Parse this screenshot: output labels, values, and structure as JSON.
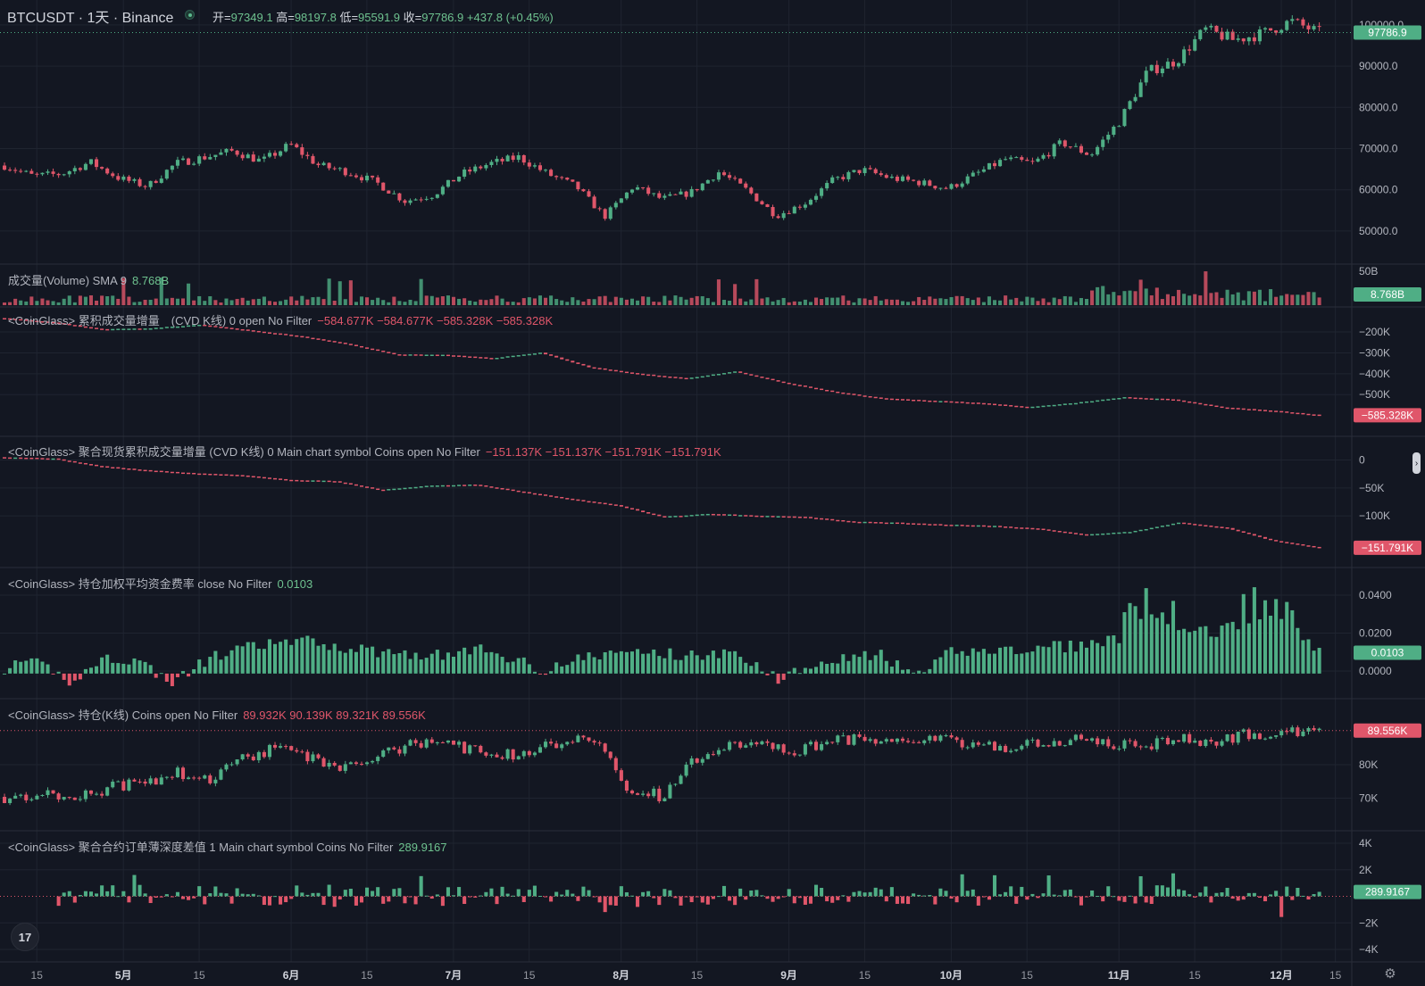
{
  "header": {
    "title": "BTCUSDT · 1天 · Binance",
    "ohlc": [
      {
        "k": "开=",
        "v": "97349.1"
      },
      {
        "k": "高=",
        "v": "98197.8"
      },
      {
        "k": "低=",
        "v": "95591.9"
      },
      {
        "k": "收=",
        "v": "97786.9"
      }
    ],
    "change": "+437.8 (+0.45%)"
  },
  "panes": {
    "volume": {
      "label": "成交量(Volume) SMA 9",
      "value": "8.768B"
    },
    "cvd": {
      "label": "<CoinGlass> 累积成交量增量　(CVD K线) 0 open No Filter",
      "values": "−584.677K  −584.677K  −585.328K  −585.328K"
    },
    "spot_cvd": {
      "label": "<CoinGlass> 聚合现货累积成交量增量 (CVD K线) 0 Main chart symbol Coins open No Filter",
      "values": "−151.137K  −151.137K  −151.791K  −151.791K"
    },
    "funding": {
      "label": "<CoinGlass> 持仓加权平均资金费率 close No Filter",
      "value": "0.0103"
    },
    "oi": {
      "label": "<CoinGlass> 持仓(K线) Coins open No Filter",
      "values": "89.932K  90.139K  89.321K  89.556K"
    },
    "depth": {
      "label": "<CoinGlass> 聚合合约订单薄深度差值 1 Main chart symbol Coins No Filter",
      "value": "289.9167"
    }
  },
  "logo": {
    "text": "17"
  },
  "icons": {
    "collapse": "chevron-right-icon",
    "settings": "gear-icon",
    "logo": "tradingview-logo-icon"
  },
  "colors": {
    "up": "#4fae85",
    "down": "#e0566a",
    "bg": "#131722",
    "grid": "#1f2430",
    "text": "#d1d4dc"
  },
  "chart_data": [
    {
      "type": "candlestick",
      "title": "BTCUSDT · 1天 · Binance",
      "x_ticks": [
        "15",
        "5月",
        "15",
        "6月",
        "15",
        "7月",
        "15",
        "8月",
        "15",
        "9月",
        "15",
        "10月",
        "15",
        "11月",
        "15",
        "12月",
        "15"
      ],
      "y_ticks": [
        "100000.0",
        "90000.0",
        "80000.0",
        "70000.0",
        "60000.0",
        "50000.0"
      ],
      "ylim": [
        45000,
        103000
      ],
      "last_price": "97786.9",
      "x_dates": [
        "2024-04-15",
        "2024-05-01",
        "2024-05-15",
        "2024-06-01",
        "2024-06-15",
        "2024-07-01",
        "2024-07-15",
        "2024-08-01",
        "2024-08-15",
        "2024-09-01",
        "2024-09-15",
        "2024-10-01",
        "2024-10-15",
        "2024-11-01",
        "2024-11-15",
        "2024-12-01",
        "2024-12-11"
      ],
      "close_path": [
        66000,
        63500,
        64000,
        66800,
        63000,
        61000,
        66500,
        68000,
        69500,
        67000,
        71000,
        66000,
        64500,
        62000,
        57500,
        59000,
        64000,
        66500,
        68000,
        64000,
        61000,
        53800,
        61000,
        58000,
        59500,
        64500,
        60000,
        54000,
        57000,
        62500,
        65000,
        63000,
        62000,
        60500,
        64000,
        67500,
        66500,
        71500,
        68500,
        76500,
        88500,
        91000,
        98500,
        96000,
        97500,
        100500,
        97786.9
      ],
      "grid": true
    },
    {
      "type": "bar",
      "title": "成交量(Volume) SMA 9",
      "y_ticks": [
        "50B"
      ],
      "last_value": "8.768B",
      "max_values": [
        "50B"
      ]
    },
    {
      "type": "candlestick",
      "title": "<CoinGlass> 累积成交量增量　(CVD K线) 0 open No Filter",
      "y_ticks": [
        "−200K",
        "−300K",
        "−400K",
        "−500K"
      ],
      "ylim": [
        -640000,
        -140000
      ],
      "last_value": "−585.328K",
      "path": [
        -150000,
        -170000,
        -200000,
        -195000,
        -180000,
        -205000,
        -230000,
        -265000,
        -312000,
        -315000,
        -330000,
        -305000,
        -370000,
        -400000,
        -420000,
        -390000,
        -440000,
        -480000,
        -510000,
        -520000,
        -530000,
        -550000,
        -530000,
        -505000,
        -515000,
        -550000,
        -565000,
        -585328
      ]
    },
    {
      "type": "candlestick",
      "title": "<CoinGlass> 聚合现货累积成交量增量 (CVD K线) 0 Main chart symbol Coins open No Filter",
      "y_ticks": [
        "0",
        "−50K",
        "−100K"
      ],
      "ylim": [
        -170000,
        20000
      ],
      "last_value": "−151.791K",
      "path": [
        0,
        -2000,
        -15000,
        -22000,
        -27000,
        -30000,
        -38000,
        -40000,
        -55000,
        -48000,
        -46000,
        -58000,
        -70000,
        -80000,
        -100000,
        -95000,
        -98000,
        -100000,
        -108000,
        -110000,
        -113000,
        -115000,
        -120000,
        -130000,
        -125000,
        -110000,
        -118000,
        -140000,
        -151791
      ]
    },
    {
      "type": "bar",
      "title": "<CoinGlass> 持仓加权平均资金费率 close No Filter",
      "y_ticks": [
        "0.0400",
        "0.0200",
        "0.0000"
      ],
      "ylim": [
        -0.008,
        0.048
      ],
      "last_value": "0.0103",
      "profile": [
        0.003,
        0.005,
        -0.004,
        0.008,
        0.006,
        -0.005,
        0.007,
        0.012,
        0.015,
        0.016,
        0.013,
        0.011,
        0.01,
        0.009,
        0.012,
        0.008,
        0.002,
        0.007,
        0.01,
        0.011,
        0.009,
        0.01,
        0.008,
        -0.003,
        0.006,
        0.008,
        0.009,
        -0.002,
        0.01,
        0.012,
        0.011,
        0.013,
        0.014,
        0.017,
        0.03,
        0.022,
        0.02,
        0.028,
        0.025,
        0.01
      ]
    },
    {
      "type": "candlestick",
      "title": "<CoinGlass> 持仓(K线) Coins open No Filter",
      "y_ticks": [
        "80K",
        "70K"
      ],
      "ylim": [
        64000,
        96000
      ],
      "last_value": "89.556K",
      "path": [
        71000,
        72000,
        70500,
        73500,
        75000,
        78000,
        76000,
        82000,
        85000,
        81000,
        79500,
        84000,
        86000,
        85000,
        83000,
        82500,
        86500,
        88000,
        74000,
        71000,
        82000,
        85000,
        86000,
        84000,
        86500,
        87000,
        85500,
        87000,
        86000,
        84500,
        86000,
        87500,
        86000,
        85500,
        87500,
        86500,
        89000,
        88500,
        89556
      ]
    },
    {
      "type": "bar",
      "title": "<CoinGlass> 聚合合约订单薄深度差值 1 Main chart symbol Coins No Filter",
      "y_ticks": [
        "4K",
        "2K",
        "−2K",
        "−4K"
      ],
      "ylim": [
        -4000,
        4000
      ],
      "last_value": "289.9167"
    }
  ]
}
